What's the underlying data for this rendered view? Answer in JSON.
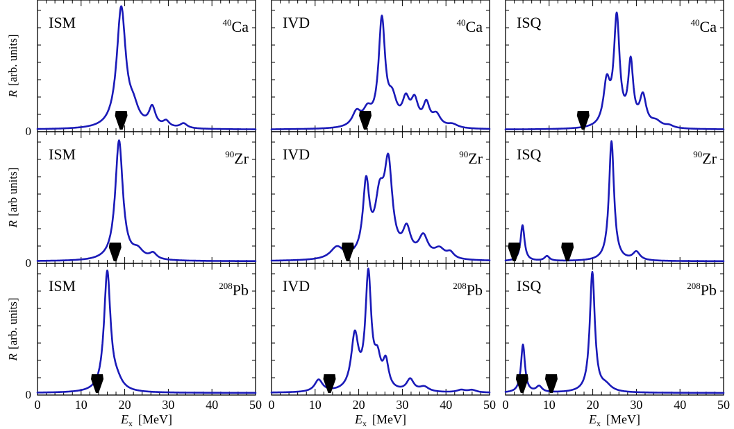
{
  "figure": {
    "colors": {
      "curve": "#1a1ab8",
      "marker": "#000000",
      "frame": "#000000"
    },
    "column_labels": [
      "ISM",
      "IVD",
      "ISQ"
    ],
    "row_labels": [
      {
        "mass": "40",
        "element": "Ca"
      },
      {
        "mass": "90",
        "element": "Zr"
      },
      {
        "mass": "208",
        "element": "Pb"
      }
    ],
    "ylabels": [
      {
        "var": "R",
        "unit": "[arb. units]"
      },
      {
        "var": "R",
        "unit": "[arb units]"
      },
      {
        "var": "R",
        "unit": "[arb. units]"
      }
    ],
    "ytick_zero": "0",
    "xlabel": {
      "var": "E",
      "sub": "x",
      "unit": "[MeV]"
    },
    "xticks": [
      "0",
      "10",
      "20",
      "30",
      "40",
      "50"
    ]
  },
  "chart_data": [
    {
      "type": "line",
      "operator": "ISM",
      "nucleus": "40Ca",
      "xlim": [
        0,
        50
      ],
      "ylim": [
        0,
        1
      ],
      "peaks": [
        [
          19.2,
          1.0,
          1.25
        ],
        [
          22.0,
          0.13,
          1.4
        ],
        [
          26.3,
          0.16,
          0.9
        ],
        [
          29.5,
          0.05,
          0.9
        ],
        [
          33.5,
          0.04,
          1.0
        ]
      ],
      "marker_energy": 19.2
    },
    {
      "type": "line",
      "operator": "IVD",
      "nucleus": "40Ca",
      "xlim": [
        0,
        50
      ],
      "ylim": [
        0,
        1
      ],
      "peaks": [
        [
          19.5,
          0.12,
          1.2
        ],
        [
          22.0,
          0.12,
          1.2
        ],
        [
          25.3,
          0.88,
          0.9
        ],
        [
          27.7,
          0.2,
          1.2
        ],
        [
          30.8,
          0.2,
          1.0
        ],
        [
          32.8,
          0.2,
          1.0
        ],
        [
          35.5,
          0.18,
          0.9
        ],
        [
          37.8,
          0.1,
          1.2
        ],
        [
          41.5,
          0.03,
          1.5
        ]
      ],
      "marker_energy": 21.5
    },
    {
      "type": "line",
      "operator": "ISQ",
      "nucleus": "40Ca",
      "xlim": [
        0,
        50
      ],
      "ylim": [
        0,
        1
      ],
      "peaks": [
        [
          23.2,
          0.35,
          0.9
        ],
        [
          25.5,
          0.9,
          0.8
        ],
        [
          28.7,
          0.52,
          0.7
        ],
        [
          31.5,
          0.25,
          0.9
        ],
        [
          34.5,
          0.05,
          1.5
        ],
        [
          37.5,
          0.02,
          1.2
        ]
      ],
      "marker_energy": 17.8
    },
    {
      "type": "line",
      "operator": "ISM",
      "nucleus": "90Zr",
      "xlim": [
        0,
        50
      ],
      "ylim": [
        0,
        1
      ],
      "peaks": [
        [
          18.7,
          1.0,
          1.05
        ],
        [
          23.0,
          0.07,
          1.5
        ],
        [
          26.5,
          0.05,
          1.0
        ]
      ],
      "marker_energy": 17.8
    },
    {
      "type": "line",
      "operator": "IVD",
      "nucleus": "90Zr",
      "xlim": [
        0,
        50
      ],
      "ylim": [
        0,
        1
      ],
      "peaks": [
        [
          15.0,
          0.1,
          1.8
        ],
        [
          21.7,
          0.6,
          0.9
        ],
        [
          24.8,
          0.45,
          1.3
        ],
        [
          26.8,
          0.72,
          1.1
        ],
        [
          31.0,
          0.22,
          1.1
        ],
        [
          34.8,
          0.18,
          1.3
        ],
        [
          38.5,
          0.08,
          1.5
        ],
        [
          41.0,
          0.05,
          1.0
        ]
      ],
      "marker_energy": 17.5
    },
    {
      "type": "line",
      "operator": "ISQ",
      "nucleus": "90Zr",
      "xlim": [
        0,
        50
      ],
      "ylim": [
        0,
        1
      ],
      "peaks": [
        [
          3.9,
          0.3,
          0.55
        ],
        [
          9.5,
          0.04,
          0.7
        ],
        [
          24.3,
          1.0,
          0.7
        ],
        [
          30.0,
          0.07,
          1.0
        ]
      ],
      "marker_energy": [
        2.0,
        14.2
      ]
    },
    {
      "type": "line",
      "operator": "ISM",
      "nucleus": "208Pb",
      "xlim": [
        0,
        50
      ],
      "ylim": [
        0,
        1
      ],
      "peaks": [
        [
          16.0,
          1.0,
          0.9
        ],
        [
          18.2,
          0.07,
          1.5
        ]
      ],
      "marker_energy": 13.7
    },
    {
      "type": "line",
      "operator": "IVD",
      "nucleus": "208Pb",
      "xlim": [
        0,
        50
      ],
      "ylim": [
        0,
        1
      ],
      "peaks": [
        [
          10.8,
          0.1,
          1.1
        ],
        [
          19.1,
          0.45,
          1.0
        ],
        [
          22.2,
          0.95,
          0.8
        ],
        [
          24.3,
          0.22,
          0.9
        ],
        [
          26.2,
          0.22,
          0.8
        ],
        [
          31.8,
          0.1,
          1.0
        ],
        [
          35.0,
          0.04,
          1.3
        ],
        [
          43.5,
          0.02,
          1.2
        ],
        [
          46.0,
          0.02,
          1.2
        ]
      ],
      "marker_energy": 13.3
    },
    {
      "type": "line",
      "operator": "ISQ",
      "nucleus": "208Pb",
      "xlim": [
        0,
        50
      ],
      "ylim": [
        0,
        1
      ],
      "peaks": [
        [
          4.0,
          0.4,
          0.55
        ],
        [
          7.7,
          0.05,
          0.8
        ],
        [
          19.9,
          1.0,
          0.7
        ],
        [
          23.0,
          0.05,
          1.5
        ]
      ],
      "marker_energy": [
        3.8,
        10.5
      ]
    }
  ]
}
